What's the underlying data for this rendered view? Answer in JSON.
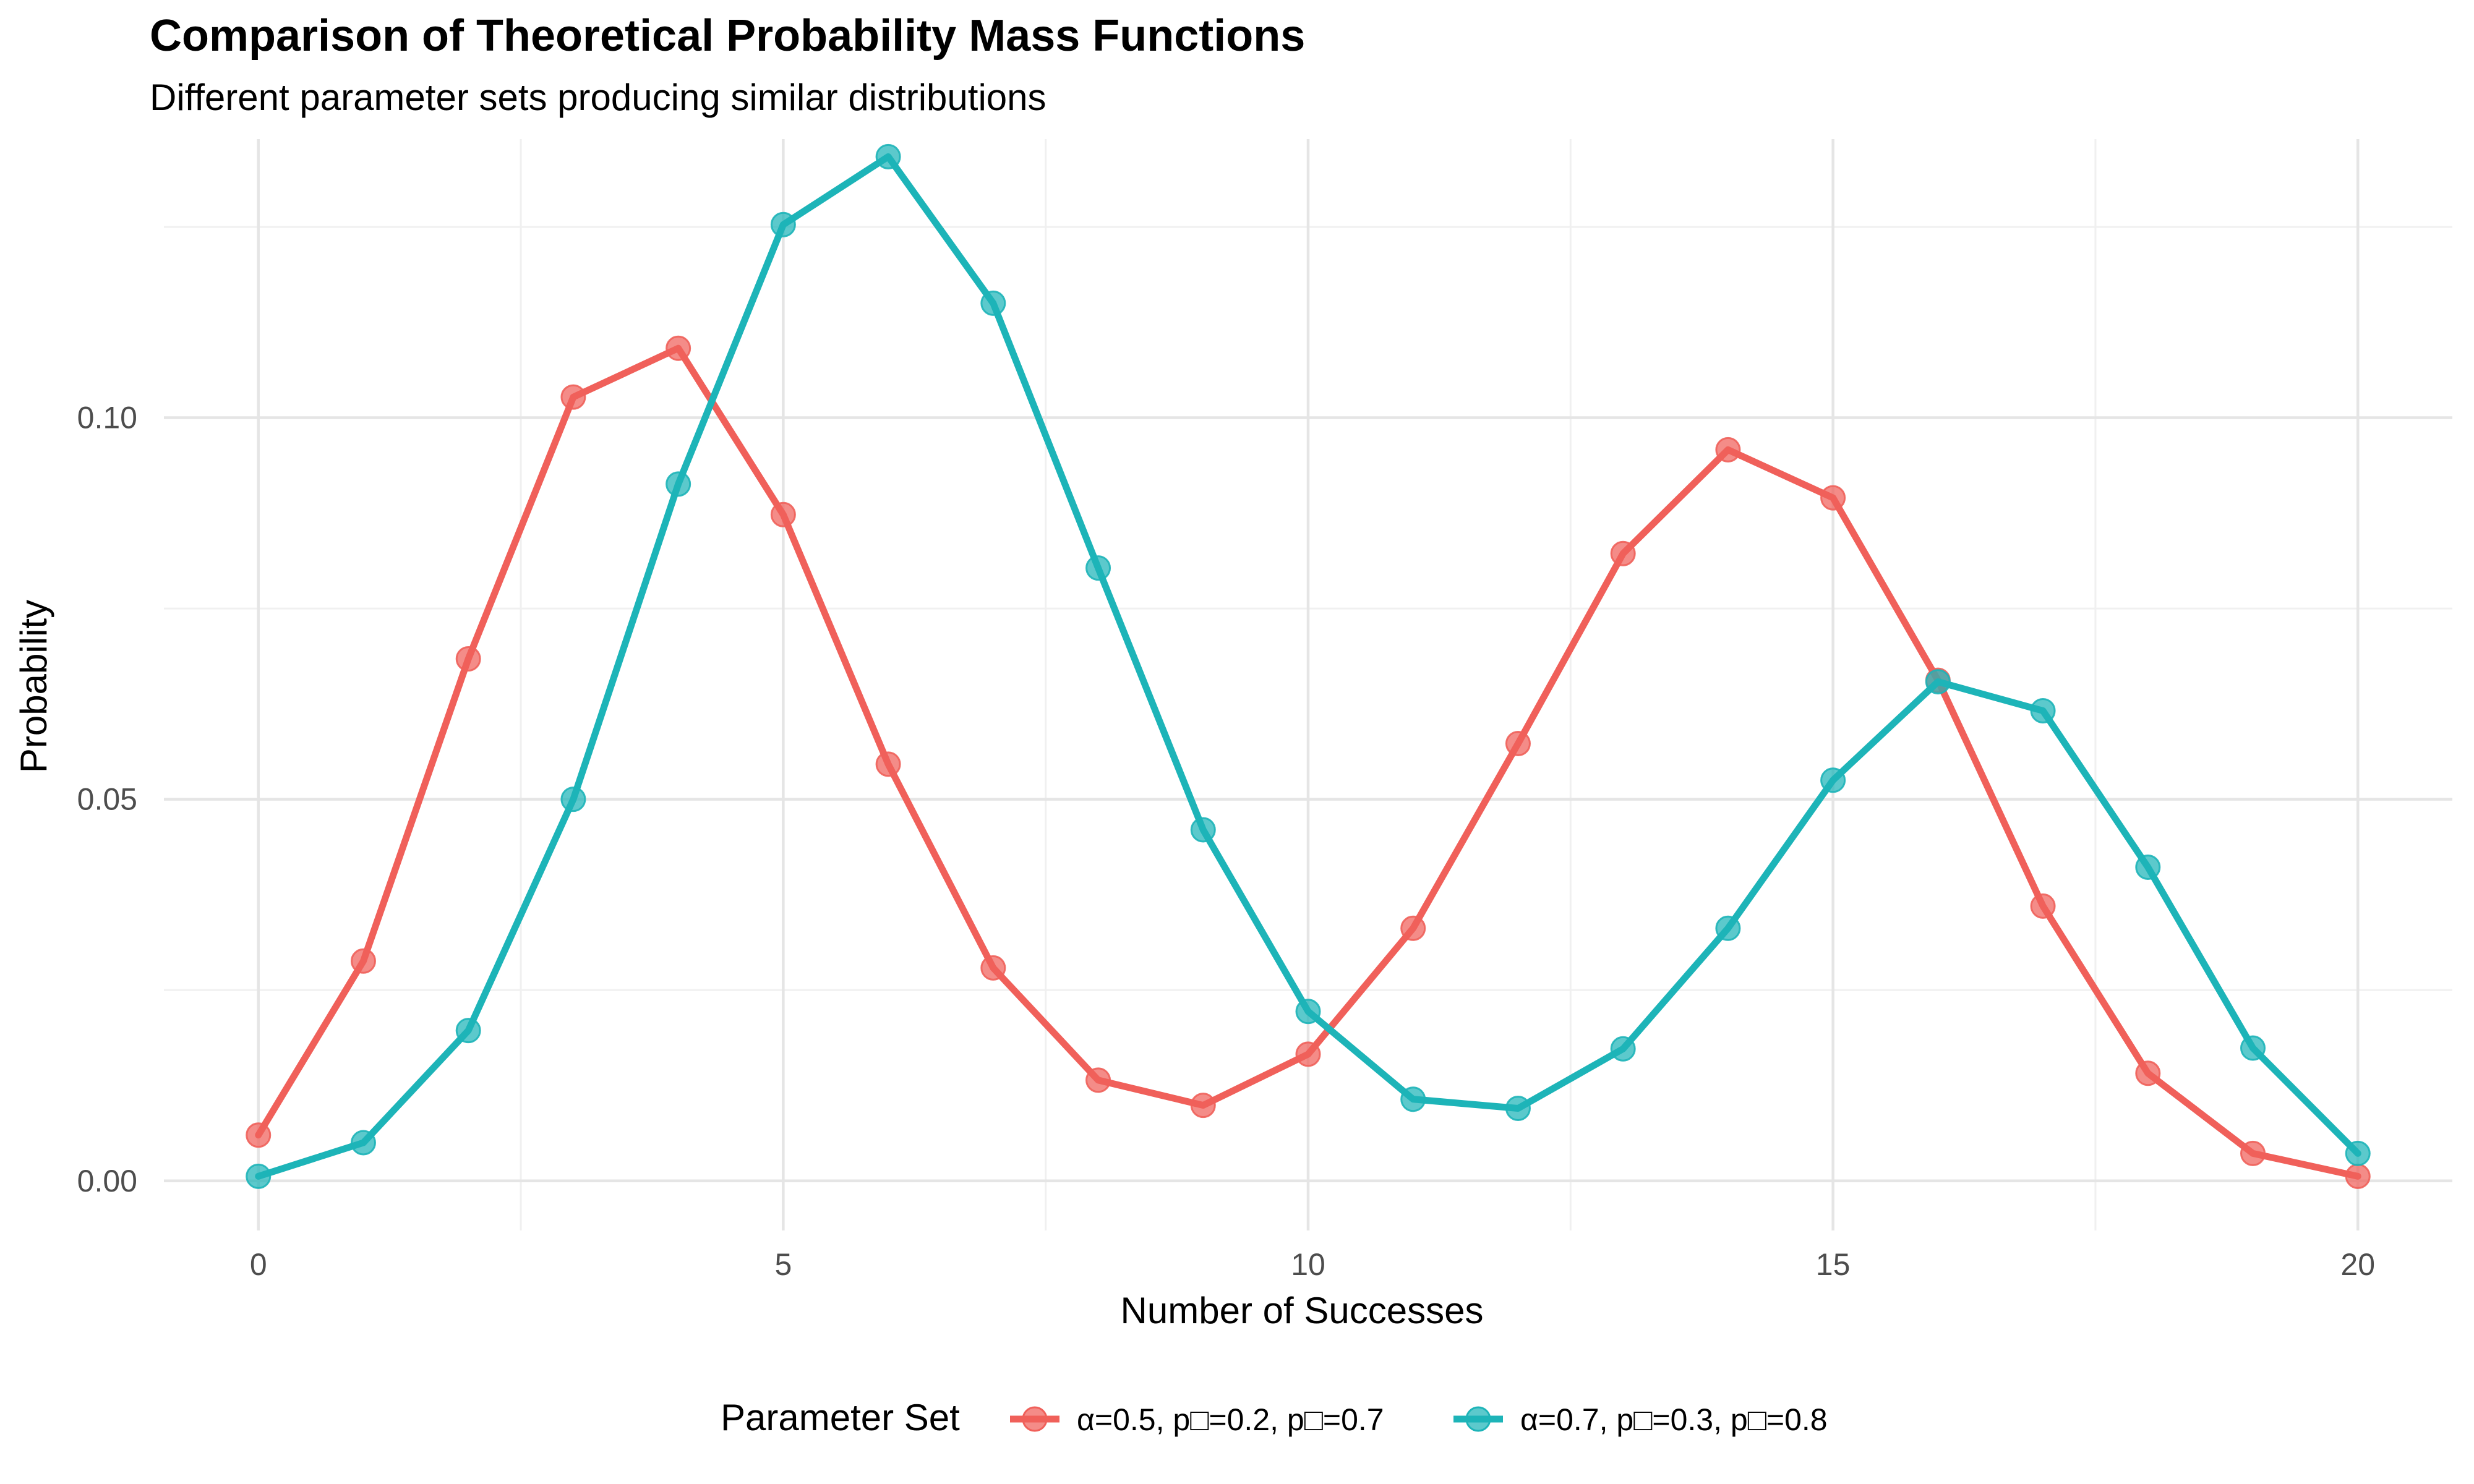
{
  "chart_data": {
    "type": "line",
    "title": "Comparison of Theoretical Probability Mass Functions",
    "subtitle": "Different parameter sets producing similar distributions",
    "xlabel": "Number of Successes",
    "ylabel": "Probability",
    "xlim": [
      -0.9,
      20.9
    ],
    "ylim": [
      -0.0065,
      0.1365
    ],
    "x_ticks": [
      0,
      5,
      10,
      15,
      20
    ],
    "x_tick_labels": [
      "0",
      "5",
      "10",
      "15",
      "20"
    ],
    "y_ticks": [
      0.0,
      0.05,
      0.1
    ],
    "y_tick_labels": [
      "0.00",
      "0.05",
      "0.10"
    ],
    "grid": true,
    "legend_position": "bottom",
    "legend_title": "Parameter Set",
    "x": [
      0,
      1,
      2,
      3,
      4,
      5,
      6,
      7,
      8,
      9,
      10,
      11,
      12,
      13,
      14,
      15,
      16,
      17,
      18,
      19,
      20
    ],
    "series": [
      {
        "name": "α=0.5, p□=0.2, p□=0.7",
        "color": "#F0605A",
        "values": [
          0.006,
          0.0288,
          0.0684,
          0.1027,
          0.1091,
          0.0873,
          0.0546,
          0.0279,
          0.0132,
          0.0099,
          0.0166,
          0.0331,
          0.0573,
          0.0822,
          0.0958,
          0.0895,
          0.0656,
          0.036,
          0.0141,
          0.0036,
          0.0006
        ]
      },
      {
        "name": "α=0.7, p□=0.3, p□=0.8",
        "color": "#1DB4B8",
        "values": [
          0.0006,
          0.005,
          0.0197,
          0.05,
          0.0913,
          0.1253,
          0.1342,
          0.115,
          0.0803,
          0.046,
          0.0222,
          0.0107,
          0.0095,
          0.0173,
          0.0331,
          0.0525,
          0.0654,
          0.0616,
          0.0411,
          0.0174,
          0.0036
        ]
      }
    ]
  }
}
